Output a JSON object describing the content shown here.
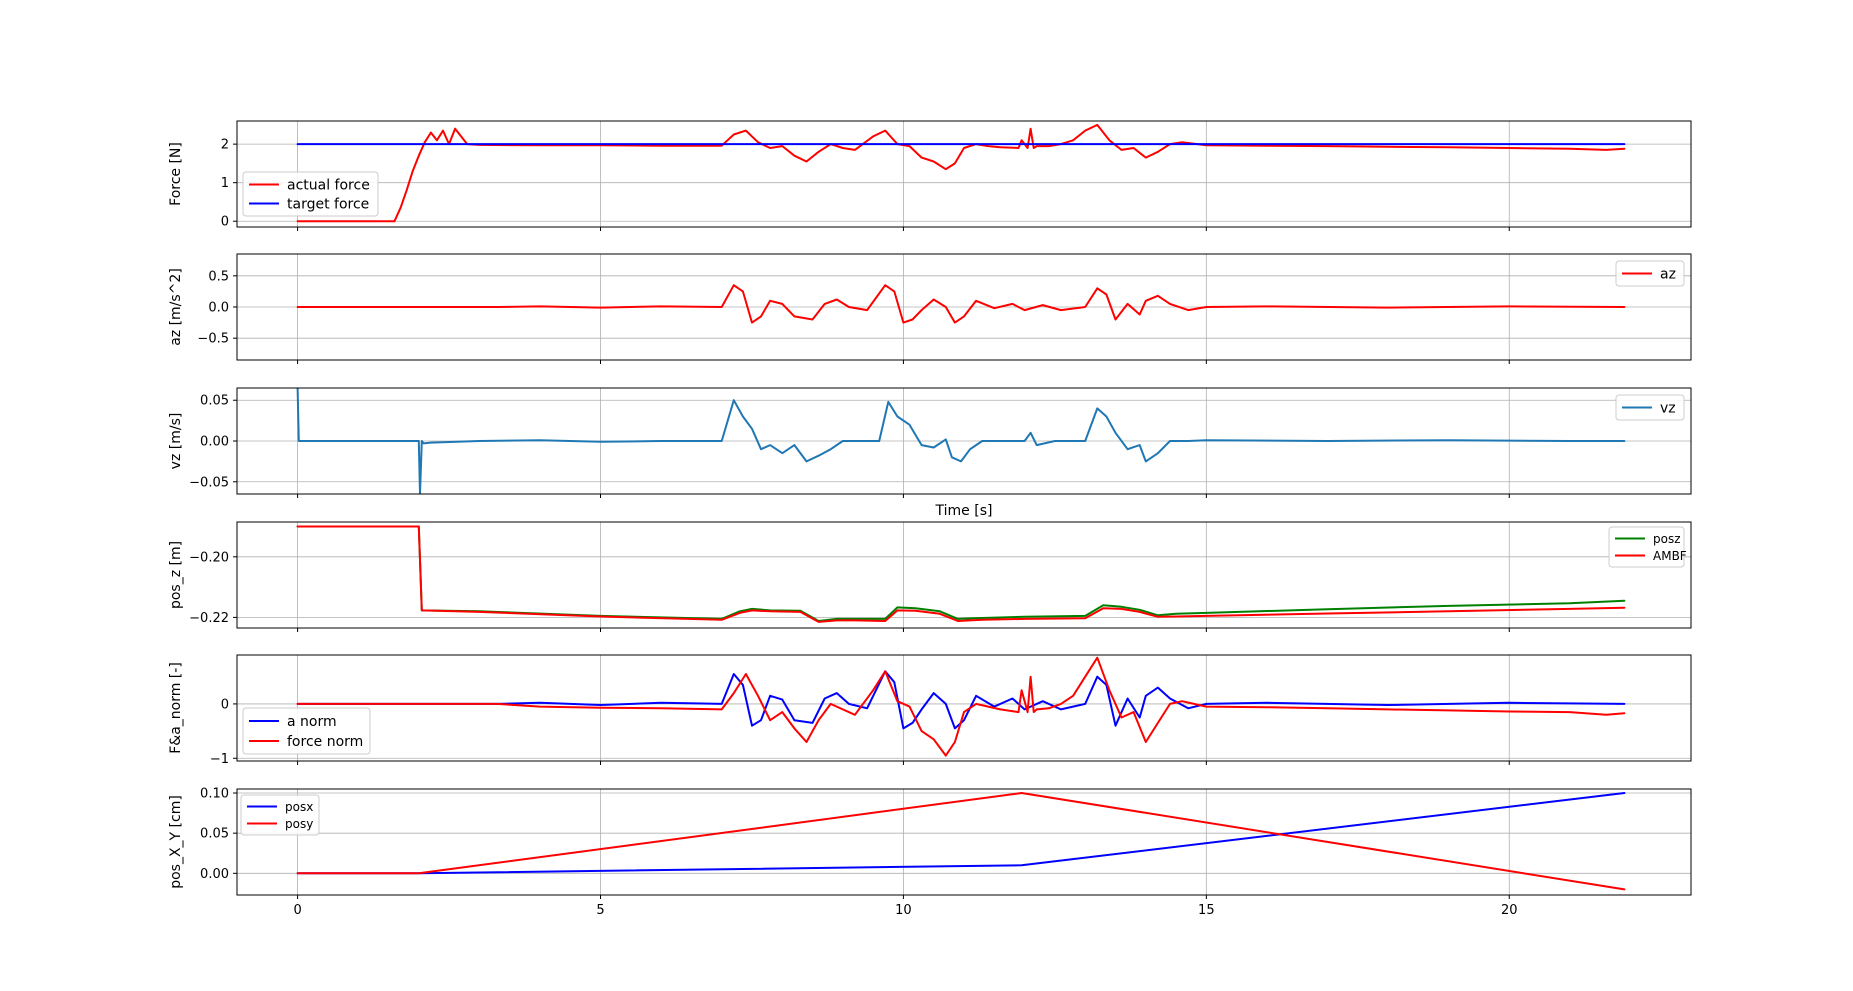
{
  "chart_data": [
    {
      "type": "line",
      "xlabel": "",
      "ylabel": "Force [N]",
      "xlim": [
        -1,
        23
      ],
      "ylim": [
        -0.15,
        2.6
      ],
      "yticks": [
        0,
        1,
        2
      ],
      "ytick_labels": [
        "0",
        "1",
        "2"
      ],
      "grid": true,
      "legend": "lower-left",
      "series": [
        {
          "name": "actual force",
          "color": "#ff0000",
          "x": [
            0,
            1.6,
            1.7,
            1.8,
            1.9,
            2.0,
            2.1,
            2.2,
            2.3,
            2.4,
            2.5,
            2.6,
            2.8,
            3.0,
            4.0,
            5.0,
            6.0,
            7.0,
            7.2,
            7.4,
            7.6,
            7.8,
            8.0,
            8.2,
            8.4,
            8.6,
            8.8,
            9.0,
            9.2,
            9.5,
            9.7,
            9.9,
            10.1,
            10.3,
            10.5,
            10.7,
            10.85,
            11.0,
            11.2,
            11.4,
            11.6,
            11.9,
            11.95,
            12.05,
            12.1,
            12.15,
            12.2,
            12.4,
            12.6,
            12.8,
            13.0,
            13.2,
            13.4,
            13.6,
            13.8,
            14.0,
            14.2,
            14.4,
            14.6,
            15.0,
            16.0,
            17.0,
            18.0,
            19.0,
            20.0,
            21.0,
            21.6,
            21.9
          ],
          "y": [
            0,
            0,
            0.35,
            0.8,
            1.3,
            1.7,
            2.05,
            2.3,
            2.1,
            2.35,
            2.0,
            2.4,
            2.0,
            1.98,
            1.97,
            1.97,
            1.96,
            1.96,
            2.25,
            2.35,
            2.05,
            1.9,
            1.95,
            1.7,
            1.55,
            1.8,
            2.0,
            1.9,
            1.85,
            2.2,
            2.35,
            2.0,
            1.95,
            1.65,
            1.55,
            1.35,
            1.5,
            1.9,
            2.0,
            1.95,
            1.92,
            1.9,
            2.1,
            1.9,
            2.4,
            1.9,
            1.95,
            1.95,
            2.0,
            2.1,
            2.35,
            2.5,
            2.1,
            1.85,
            1.9,
            1.65,
            1.8,
            2.0,
            2.05,
            1.97,
            1.96,
            1.95,
            1.93,
            1.92,
            1.9,
            1.88,
            1.85,
            1.88
          ]
        },
        {
          "name": "target force",
          "color": "#0000ff",
          "x": [
            0,
            21.9
          ],
          "y": [
            2.0,
            2.0
          ]
        }
      ]
    },
    {
      "type": "line",
      "xlabel": "",
      "ylabel": "az [m/s^2]",
      "xlim": [
        -1,
        23
      ],
      "ylim": [
        -0.85,
        0.85
      ],
      "yticks": [
        -0.5,
        0.0,
        0.5
      ],
      "ytick_labels": [
        "−0.5",
        "0.0",
        "0.5"
      ],
      "grid": true,
      "legend": "upper-right",
      "series": [
        {
          "name": "az",
          "color": "#ff0000",
          "x": [
            0,
            3.3,
            4.0,
            5.0,
            6.0,
            7.0,
            7.2,
            7.35,
            7.5,
            7.65,
            7.8,
            8.0,
            8.2,
            8.5,
            8.7,
            8.9,
            9.1,
            9.4,
            9.7,
            9.85,
            10.0,
            10.15,
            10.3,
            10.5,
            10.7,
            10.85,
            11.0,
            11.2,
            11.5,
            11.8,
            12.0,
            12.3,
            12.6,
            13.0,
            13.2,
            13.35,
            13.5,
            13.7,
            13.9,
            14.0,
            14.2,
            14.4,
            14.7,
            15.0,
            16.0,
            18.0,
            20.0,
            21.9
          ],
          "y": [
            0,
            0,
            0.01,
            -0.01,
            0.01,
            0.0,
            0.35,
            0.25,
            -0.25,
            -0.15,
            0.1,
            0.05,
            -0.15,
            -0.2,
            0.05,
            0.12,
            0.0,
            -0.05,
            0.35,
            0.25,
            -0.25,
            -0.2,
            -0.05,
            0.12,
            0.0,
            -0.25,
            -0.15,
            0.1,
            -0.02,
            0.05,
            -0.05,
            0.03,
            -0.05,
            0.0,
            0.3,
            0.2,
            -0.2,
            0.05,
            -0.12,
            0.1,
            0.18,
            0.05,
            -0.05,
            0.0,
            0.01,
            -0.01,
            0.01,
            0.0
          ]
        }
      ]
    },
    {
      "type": "line",
      "xlabel": "Time [s]",
      "ylabel": "vz [m/s]",
      "xlim": [
        -1,
        23
      ],
      "ylim": [
        -0.065,
        0.065
      ],
      "yticks": [
        -0.05,
        0.0,
        0.05
      ],
      "ytick_labels": [
        "−0.05",
        "0.00",
        "0.05"
      ],
      "grid": true,
      "legend": "upper-right",
      "series": [
        {
          "name": "vz",
          "color": "#1f77b4",
          "x": [
            0,
            0,
            0.02,
            2.0,
            2.02,
            2.05,
            2.08,
            2.2,
            3.0,
            4.0,
            5.0,
            6.0,
            7.0,
            7.2,
            7.35,
            7.5,
            7.65,
            7.8,
            8.0,
            8.2,
            8.4,
            8.6,
            8.8,
            9.0,
            9.3,
            9.6,
            9.75,
            9.9,
            10.1,
            10.3,
            10.5,
            10.7,
            10.8,
            10.95,
            11.1,
            11.3,
            11.6,
            12.0,
            12.1,
            12.2,
            12.5,
            13.0,
            13.2,
            13.35,
            13.5,
            13.7,
            13.9,
            14.0,
            14.2,
            14.4,
            14.7,
            15.0,
            17.0,
            19.0,
            21.0,
            21.9
          ],
          "y": [
            0.065,
            0.065,
            0.0,
            0.0,
            -0.065,
            0.0,
            -0.003,
            -0.002,
            0.0,
            0.001,
            -0.001,
            0.0,
            0.0,
            0.05,
            0.03,
            0.015,
            -0.01,
            -0.005,
            -0.015,
            -0.005,
            -0.025,
            -0.018,
            -0.01,
            0.0,
            0.0,
            0.0,
            0.048,
            0.03,
            0.02,
            -0.005,
            -0.008,
            0.002,
            -0.02,
            -0.025,
            -0.01,
            0.0,
            0.0,
            0.0,
            0.01,
            -0.005,
            0.0,
            0.0,
            0.04,
            0.03,
            0.01,
            -0.01,
            -0.005,
            -0.025,
            -0.015,
            0.0,
            0.0,
            0.001,
            0.0,
            0.001,
            0.0,
            0.0
          ]
        }
      ]
    },
    {
      "type": "line",
      "xlabel": "",
      "ylabel": "pos_z [m]",
      "xlim": [
        -1,
        23
      ],
      "ylim": [
        -0.2235,
        -0.1885
      ],
      "yticks": [
        -0.22,
        -0.2
      ],
      "ytick_labels": [
        "−0.22",
        "−0.20"
      ],
      "grid": true,
      "legend": "upper-right",
      "series": [
        {
          "name": "posz",
          "color": "#008000",
          "x": [
            0,
            2.0,
            2.05,
            3.0,
            5.0,
            7.0,
            7.3,
            7.5,
            7.8,
            8.3,
            8.6,
            8.9,
            9.2,
            9.7,
            9.9,
            10.2,
            10.6,
            10.9,
            11.3,
            12.0,
            13.0,
            13.3,
            13.6,
            13.9,
            14.2,
            14.5,
            15.0,
            17.0,
            19.0,
            21.0,
            21.9
          ],
          "y": [
            -0.19,
            -0.19,
            -0.2177,
            -0.218,
            -0.2195,
            -0.2205,
            -0.218,
            -0.2172,
            -0.2177,
            -0.2178,
            -0.2212,
            -0.2205,
            -0.2205,
            -0.2205,
            -0.2167,
            -0.217,
            -0.218,
            -0.2205,
            -0.2202,
            -0.2198,
            -0.2195,
            -0.216,
            -0.2165,
            -0.2175,
            -0.2193,
            -0.2188,
            -0.2185,
            -0.2173,
            -0.2162,
            -0.2153,
            -0.2145
          ]
        },
        {
          "name": "AMBF",
          "color": "#ff0000",
          "x": [
            0,
            2.0,
            2.05,
            3.0,
            5.0,
            7.0,
            7.3,
            7.5,
            7.8,
            8.3,
            8.6,
            8.9,
            9.2,
            9.7,
            9.9,
            10.2,
            10.6,
            10.9,
            11.3,
            12.0,
            13.0,
            13.3,
            13.6,
            13.9,
            14.2,
            14.5,
            15.0,
            17.0,
            19.0,
            21.0,
            21.9
          ],
          "y": [
            -0.19,
            -0.19,
            -0.2177,
            -0.2182,
            -0.2197,
            -0.2208,
            -0.2185,
            -0.2177,
            -0.218,
            -0.2182,
            -0.2215,
            -0.221,
            -0.221,
            -0.2212,
            -0.2177,
            -0.2178,
            -0.2188,
            -0.2212,
            -0.2208,
            -0.2205,
            -0.2203,
            -0.217,
            -0.2172,
            -0.2182,
            -0.2198,
            -0.2197,
            -0.2195,
            -0.2187,
            -0.218,
            -0.2172,
            -0.2168
          ]
        }
      ]
    },
    {
      "type": "line",
      "xlabel": "",
      "ylabel": "F&a_norm [-]",
      "xlim": [
        -1,
        23
      ],
      "ylim": [
        -1.05,
        0.9
      ],
      "yticks": [
        -1,
        0
      ],
      "ytick_labels": [
        "−1",
        "0"
      ],
      "grid": true,
      "legend": "lower-left",
      "series": [
        {
          "name": "a norm",
          "color": "#0000ff",
          "x": [
            0,
            3.3,
            4.0,
            5.0,
            6.0,
            7.0,
            7.2,
            7.35,
            7.5,
            7.65,
            7.8,
            8.0,
            8.2,
            8.5,
            8.7,
            8.9,
            9.1,
            9.4,
            9.7,
            9.85,
            10.0,
            10.15,
            10.3,
            10.5,
            10.7,
            10.85,
            11.0,
            11.2,
            11.5,
            11.8,
            12.0,
            12.3,
            12.6,
            13.0,
            13.2,
            13.35,
            13.5,
            13.7,
            13.9,
            14.0,
            14.2,
            14.4,
            14.7,
            15.0,
            16.0,
            18.0,
            20.0,
            21.9
          ],
          "y": [
            0,
            0,
            0.02,
            -0.02,
            0.02,
            0.0,
            0.55,
            0.35,
            -0.4,
            -0.3,
            0.15,
            0.08,
            -0.3,
            -0.35,
            0.1,
            0.2,
            0.0,
            -0.08,
            0.6,
            0.4,
            -0.45,
            -0.35,
            -0.1,
            0.2,
            0.0,
            -0.45,
            -0.3,
            0.15,
            -0.05,
            0.1,
            -0.1,
            0.05,
            -0.1,
            0.0,
            0.5,
            0.35,
            -0.4,
            0.1,
            -0.25,
            0.15,
            0.3,
            0.1,
            -0.08,
            0.0,
            0.02,
            -0.02,
            0.02,
            0.0
          ]
        },
        {
          "name": "force norm",
          "color": "#ff0000",
          "x": [
            0,
            3.3,
            4.0,
            5.0,
            6.0,
            7.0,
            7.2,
            7.4,
            7.6,
            7.8,
            8.0,
            8.2,
            8.4,
            8.6,
            8.8,
            9.0,
            9.2,
            9.5,
            9.7,
            9.9,
            10.1,
            10.3,
            10.5,
            10.7,
            10.85,
            11.0,
            11.2,
            11.4,
            11.6,
            11.9,
            11.95,
            12.05,
            12.1,
            12.15,
            12.2,
            12.4,
            12.6,
            12.8,
            13.0,
            13.2,
            13.4,
            13.6,
            13.8,
            14.0,
            14.2,
            14.4,
            14.6,
            15.0,
            16.0,
            17.0,
            18.0,
            19.0,
            20.0,
            21.0,
            21.6,
            21.9
          ],
          "y": [
            0,
            0,
            -0.05,
            -0.07,
            -0.08,
            -0.1,
            0.2,
            0.55,
            0.15,
            -0.3,
            -0.15,
            -0.45,
            -0.7,
            -0.3,
            0.0,
            -0.1,
            -0.2,
            0.25,
            0.6,
            0.05,
            -0.05,
            -0.5,
            -0.65,
            -0.95,
            -0.7,
            -0.15,
            0.0,
            -0.05,
            -0.1,
            -0.15,
            0.25,
            -0.15,
            0.5,
            -0.15,
            -0.1,
            -0.08,
            0.0,
            0.15,
            0.5,
            0.85,
            0.25,
            -0.25,
            -0.15,
            -0.7,
            -0.35,
            0.0,
            0.05,
            -0.05,
            -0.06,
            -0.08,
            -0.1,
            -0.12,
            -0.14,
            -0.15,
            -0.2,
            -0.17
          ]
        }
      ]
    },
    {
      "type": "line",
      "xlabel": "",
      "ylabel": "pos_X_Y [cm]",
      "xlim": [
        -1,
        23
      ],
      "ylim": [
        -0.027,
        0.105
      ],
      "yticks": [
        0.0,
        0.05,
        0.1
      ],
      "ytick_labels": [
        "0.00",
        "0.05",
        "0.10"
      ],
      "xticks": [
        0,
        5,
        10,
        15,
        20
      ],
      "xtick_labels": [
        "0",
        "5",
        "10",
        "15",
        "20"
      ],
      "grid": true,
      "legend": "upper-left",
      "series": [
        {
          "name": "posx",
          "color": "#0000ff",
          "x": [
            0,
            2.0,
            11.95,
            21.9
          ],
          "y": [
            0,
            0,
            0.01,
            0.1
          ]
        },
        {
          "name": "posy",
          "color": "#ff0000",
          "x": [
            0,
            2.0,
            11.95,
            21.9
          ],
          "y": [
            0,
            0,
            0.1,
            -0.02
          ]
        }
      ]
    }
  ]
}
